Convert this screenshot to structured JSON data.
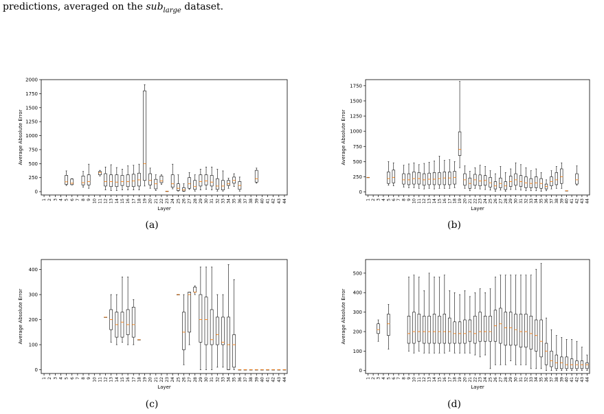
{
  "caption": {
    "prefix": "predictions, averaged on the ",
    "dataset": "sub",
    "dataset_sub": "large",
    "suffix": " dataset."
  },
  "panel_labels": [
    "(a)",
    "(b)",
    "(c)",
    "(d)"
  ],
  "colors": {
    "box": "#000000",
    "median": "#ff7f0e",
    "axes": "#000000"
  },
  "chart_data": [
    {
      "type": "box",
      "panel": "(a)",
      "xlabel": "Layer",
      "ylabel": "Average Absolute Error",
      "ylim": [
        -60,
        2000
      ],
      "yticks": [
        0,
        250,
        500,
        750,
        1000,
        1250,
        1500,
        1750,
        2000
      ],
      "categories": [
        "1",
        "2",
        "3",
        "4",
        "5",
        "6",
        "7",
        "8",
        "9",
        "10",
        "11",
        "12",
        "13",
        "14",
        "15",
        "16",
        "17",
        "18",
        "19",
        "20",
        "21",
        "22",
        "23",
        "24",
        "25",
        "26",
        "27",
        "28",
        "29",
        "30",
        "31",
        "32",
        "33",
        "34",
        "35",
        "36",
        "37",
        "38",
        "39",
        "40",
        "41",
        "42",
        "43",
        "44"
      ],
      "boxes": [
        null,
        null,
        null,
        null,
        [
          110,
          130,
          175,
          290,
          370
        ],
        [
          120,
          125,
          150,
          225,
          230
        ],
        null,
        [
          80,
          120,
          160,
          280,
          360
        ],
        [
          60,
          120,
          180,
          300,
          490
        ],
        null,
        [
          280,
          300,
          340,
          360,
          380
        ],
        [
          30,
          100,
          180,
          320,
          440
        ],
        [
          20,
          90,
          180,
          300,
          480
        ],
        [
          20,
          90,
          170,
          300,
          430
        ],
        [
          30,
          110,
          180,
          290,
          400
        ],
        [
          30,
          90,
          180,
          300,
          460
        ],
        [
          30,
          90,
          190,
          310,
          470
        ],
        [
          30,
          100,
          210,
          330,
          490
        ],
        [
          100,
          200,
          500,
          1800,
          1910
        ],
        [
          60,
          120,
          200,
          320,
          420
        ],
        [
          20,
          50,
          140,
          220,
          300
        ],
        [
          130,
          160,
          190,
          280,
          300
        ],
        [
          5,
          5,
          5,
          8,
          10
        ],
        [
          50,
          80,
          140,
          300,
          490
        ],
        [
          10,
          20,
          60,
          140,
          300
        ],
        [
          5,
          10,
          30,
          70,
          140
        ],
        [
          40,
          60,
          140,
          250,
          340
        ],
        [
          10,
          40,
          90,
          200,
          300
        ],
        [
          30,
          100,
          180,
          300,
          400
        ],
        [
          40,
          120,
          190,
          300,
          440
        ],
        [
          30,
          100,
          170,
          290,
          440
        ],
        [
          10,
          40,
          100,
          230,
          400
        ],
        [
          10,
          30,
          100,
          200,
          370
        ],
        [
          60,
          110,
          140,
          200,
          240
        ],
        [
          90,
          150,
          200,
          260,
          320
        ],
        [
          10,
          40,
          110,
          180,
          260
        ],
        null,
        null,
        [
          150,
          170,
          230,
          380,
          420
        ],
        null,
        null,
        null,
        null,
        null
      ]
    },
    {
      "type": "box",
      "panel": "(b)",
      "xlabel": "Layer",
      "ylabel": "Average Absolute Error",
      "ylim": [
        -50,
        1850
      ],
      "yticks": [
        0,
        250,
        500,
        750,
        1000,
        1250,
        1500,
        1750
      ],
      "categories": [
        "1",
        "2",
        "3",
        "4",
        "5",
        "6",
        "7",
        "8",
        "9",
        "10",
        "11",
        "12",
        "13",
        "14",
        "15",
        "16",
        "17",
        "18",
        "19",
        "20",
        "21",
        "22",
        "23",
        "24",
        "25",
        "26",
        "27",
        "28",
        "29",
        "30",
        "31",
        "32",
        "33",
        "34",
        "35",
        "36",
        "37",
        "38",
        "39",
        "40",
        "41",
        "42",
        "43",
        "44"
      ],
      "boxes": [
        [
          240,
          240,
          240,
          240,
          240
        ],
        null,
        null,
        null,
        [
          110,
          140,
          220,
          330,
          500
        ],
        [
          100,
          150,
          240,
          360,
          480
        ],
        null,
        [
          80,
          130,
          200,
          300,
          440
        ],
        [
          70,
          120,
          200,
          300,
          460
        ],
        [
          70,
          130,
          220,
          330,
          480
        ],
        [
          60,
          130,
          220,
          320,
          450
        ],
        [
          50,
          110,
          200,
          300,
          470
        ],
        [
          60,
          120,
          210,
          310,
          490
        ],
        [
          50,
          120,
          210,
          320,
          510
        ],
        [
          60,
          120,
          220,
          320,
          590
        ],
        [
          60,
          120,
          230,
          330,
          520
        ],
        [
          60,
          120,
          230,
          330,
          530
        ],
        [
          70,
          130,
          240,
          340,
          500
        ],
        [
          400,
          600,
          700,
          990,
          1820
        ],
        [
          60,
          110,
          200,
          300,
          430
        ],
        [
          20,
          60,
          140,
          230,
          340
        ],
        [
          60,
          110,
          200,
          290,
          400
        ],
        [
          50,
          100,
          180,
          280,
          440
        ],
        [
          40,
          110,
          190,
          270,
          420
        ],
        [
          30,
          80,
          150,
          240,
          350
        ],
        [
          10,
          50,
          100,
          170,
          300
        ],
        [
          30,
          70,
          140,
          230,
          420
        ],
        [
          10,
          40,
          100,
          170,
          320
        ],
        [
          40,
          90,
          170,
          260,
          380
        ],
        [
          40,
          110,
          200,
          300,
          480
        ],
        [
          30,
          90,
          170,
          270,
          450
        ],
        [
          20,
          70,
          150,
          250,
          400
        ],
        [
          20,
          70,
          140,
          220,
          350
        ],
        [
          20,
          70,
          150,
          250,
          380
        ],
        [
          10,
          60,
          140,
          220,
          320
        ],
        [
          20,
          50,
          90,
          130,
          200
        ],
        [
          50,
          100,
          170,
          250,
          350
        ],
        [
          60,
          120,
          200,
          320,
          420
        ],
        [
          60,
          140,
          250,
          380,
          480
        ],
        [
          20,
          20,
          20,
          20,
          20
        ],
        null,
        [
          110,
          130,
          200,
          300,
          430
        ],
        null,
        null
      ]
    },
    {
      "type": "box",
      "panel": "(c)",
      "xlabel": "Layer",
      "ylabel": "Average Absolute Error",
      "ylim": [
        -15,
        440
      ],
      "yticks": [
        0,
        100,
        200,
        300,
        400
      ],
      "categories": [
        "1",
        "2",
        "3",
        "4",
        "5",
        "6",
        "7",
        "8",
        "9",
        "10",
        "11",
        "12",
        "13",
        "14",
        "15",
        "16",
        "17",
        "18",
        "19",
        "20",
        "21",
        "22",
        "23",
        "24",
        "25",
        "26",
        "27",
        "28",
        "29",
        "30",
        "31",
        "32",
        "33",
        "34",
        "35",
        "36",
        "37",
        "38",
        "39",
        "40",
        "41",
        "42",
        "43",
        "44"
      ],
      "boxes": [
        null,
        null,
        null,
        null,
        null,
        null,
        null,
        null,
        null,
        null,
        null,
        [
          210,
          210,
          210,
          210,
          210
        ],
        [
          110,
          160,
          200,
          240,
          300
        ],
        [
          100,
          130,
          180,
          230,
          300
        ],
        [
          110,
          130,
          190,
          230,
          370
        ],
        [
          100,
          140,
          180,
          240,
          370
        ],
        [
          100,
          130,
          180,
          250,
          280
        ],
        [
          120,
          120,
          120,
          120,
          120
        ],
        null,
        null,
        null,
        null,
        null,
        null,
        [
          300,
          300,
          300,
          300,
          300
        ],
        [
          20,
          80,
          150,
          230,
          300
        ],
        [
          100,
          150,
          300,
          310,
          310
        ],
        [
          300,
          310,
          310,
          330,
          335
        ],
        [
          0,
          110,
          200,
          300,
          410
        ],
        [
          0,
          100,
          200,
          290,
          410
        ],
        [
          0,
          100,
          120,
          240,
          410
        ],
        [
          10,
          100,
          140,
          210,
          300
        ],
        [
          10,
          100,
          110,
          210,
          300
        ],
        [
          0,
          0,
          100,
          210,
          420
        ],
        [
          0,
          10,
          100,
          140,
          360
        ],
        [
          0,
          0,
          0,
          0,
          0
        ],
        [
          0,
          0,
          0,
          0,
          0
        ],
        [
          0,
          0,
          0,
          0,
          0
        ],
        [
          0,
          0,
          0,
          0,
          0
        ],
        [
          0,
          0,
          0,
          0,
          0
        ],
        [
          0,
          0,
          0,
          0,
          0
        ],
        [
          0,
          0,
          0,
          0,
          0
        ],
        [
          0,
          0,
          0,
          0,
          0
        ],
        [
          0,
          0,
          0,
          0,
          0
        ]
      ]
    },
    {
      "type": "box",
      "panel": "(d)",
      "xlabel": "Layer",
      "ylabel": "Average Absolute Error",
      "ylim": [
        -15,
        570
      ],
      "yticks": [
        0,
        100,
        200,
        300,
        400,
        500
      ],
      "categories": [
        "1",
        "2",
        "3",
        "4",
        "5",
        "6",
        "7",
        "8",
        "9",
        "10",
        "11",
        "12",
        "13",
        "14",
        "15",
        "16",
        "17",
        "18",
        "19",
        "20",
        "21",
        "22",
        "23",
        "24",
        "25",
        "26",
        "27",
        "28",
        "29",
        "30",
        "31",
        "32",
        "33",
        "34",
        "35",
        "36",
        "37",
        "38",
        "39",
        "40",
        "41",
        "42",
        "43",
        "44"
      ],
      "boxes": [
        null,
        null,
        [
          150,
          190,
          210,
          240,
          260
        ],
        null,
        [
          110,
          180,
          240,
          290,
          340
        ],
        null,
        null,
        null,
        [
          100,
          140,
          190,
          280,
          480
        ],
        [
          90,
          140,
          200,
          300,
          490
        ],
        [
          100,
          150,
          200,
          290,
          480
        ],
        [
          90,
          140,
          200,
          280,
          410
        ],
        [
          90,
          140,
          200,
          280,
          500
        ],
        [
          90,
          140,
          200,
          290,
          480
        ],
        [
          90,
          140,
          200,
          280,
          480
        ],
        [
          90,
          140,
          200,
          290,
          490
        ],
        [
          100,
          140,
          200,
          270,
          410
        ],
        [
          90,
          140,
          190,
          250,
          400
        ],
        [
          90,
          140,
          190,
          250,
          390
        ],
        [
          90,
          140,
          190,
          260,
          410
        ],
        [
          90,
          150,
          200,
          260,
          380
        ],
        [
          80,
          140,
          190,
          280,
          400
        ],
        [
          70,
          150,
          200,
          300,
          420
        ],
        [
          80,
          150,
          200,
          280,
          400
        ],
        [
          10,
          150,
          200,
          280,
          420
        ],
        [
          30,
          150,
          230,
          310,
          480
        ],
        [
          30,
          140,
          240,
          320,
          490
        ],
        [
          30,
          130,
          220,
          300,
          490
        ],
        [
          50,
          130,
          220,
          300,
          490
        ],
        [
          30,
          130,
          210,
          290,
          490
        ],
        [
          30,
          120,
          200,
          290,
          490
        ],
        [
          30,
          120,
          200,
          290,
          490
        ],
        [
          10,
          110,
          190,
          280,
          490
        ],
        [
          10,
          100,
          180,
          260,
          520
        ],
        [
          10,
          70,
          150,
          260,
          550
        ],
        [
          0,
          30,
          100,
          140,
          270
        ],
        [
          0,
          20,
          50,
          100,
          210
        ],
        [
          0,
          10,
          40,
          80,
          180
        ],
        [
          0,
          10,
          40,
          70,
          170
        ],
        [
          0,
          10,
          30,
          70,
          160
        ],
        [
          0,
          10,
          30,
          60,
          160
        ],
        [
          0,
          10,
          30,
          50,
          150
        ],
        [
          0,
          10,
          30,
          50,
          120
        ],
        [
          0,
          10,
          30,
          40,
          80
        ]
      ]
    }
  ]
}
